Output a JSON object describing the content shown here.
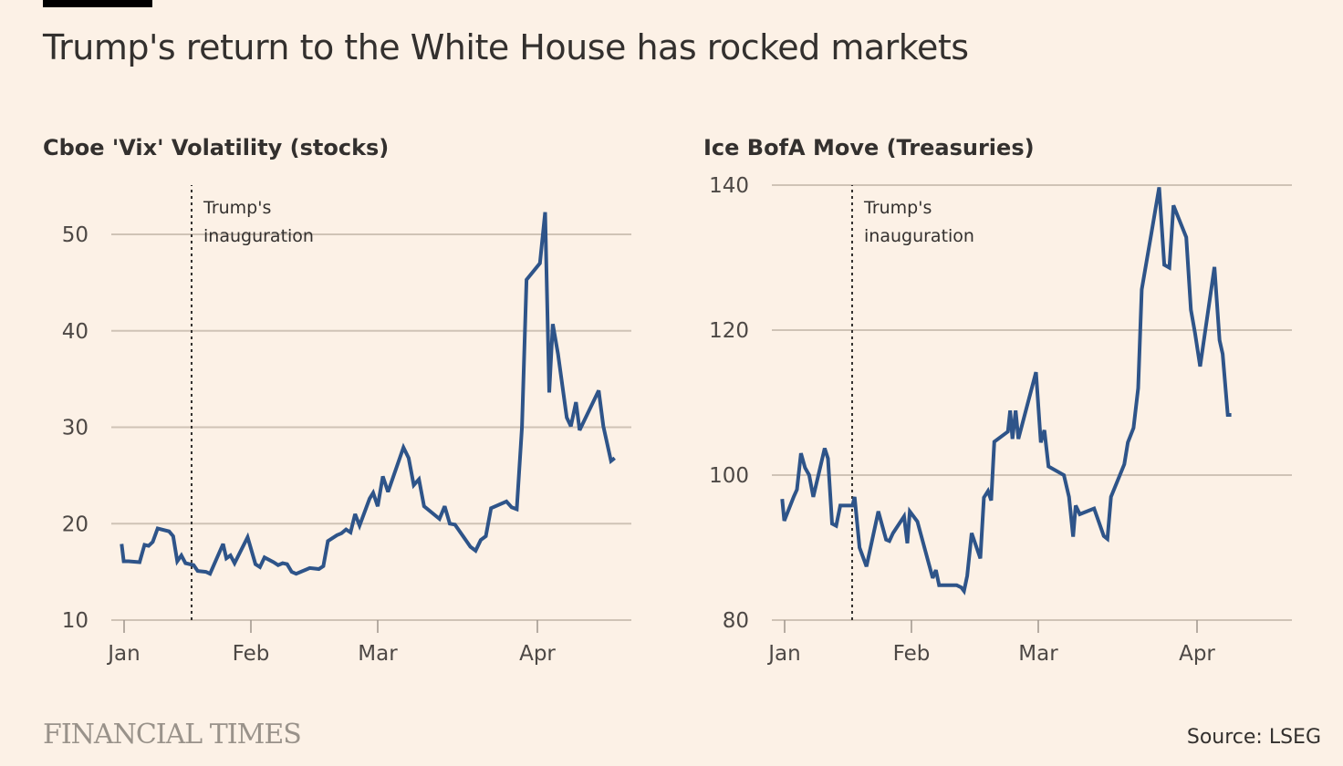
{
  "header": {
    "title": "Trump's return to the White House has rocked markets"
  },
  "footer": {
    "logo": "FINANCIAL TIMES",
    "source": "Source: LSEG"
  },
  "colors": {
    "background": "#fcf1e6",
    "line": "#2e5489",
    "grid": "#cfc3b6",
    "text": "#33302e"
  },
  "chart_data": [
    {
      "type": "line",
      "title": "Cboe 'Vix' Volatility (stocks)",
      "xlabel": "",
      "ylabel": "",
      "x_unit": "day-of-year 2025 (Jan 1 = 0)",
      "ylim": [
        10,
        55
      ],
      "yticks": [
        10,
        20,
        30,
        40,
        50
      ],
      "xticks": [
        {
          "label": "Jan",
          "day": 0
        },
        {
          "label": "Feb",
          "day": 31
        },
        {
          "label": "Mar",
          "day": 59
        },
        {
          "label": "Apr",
          "day": 90
        }
      ],
      "xlim": [
        -1,
        110
      ],
      "grid": true,
      "annotation": {
        "text": [
          "Trump's",
          "inauguration"
        ],
        "day": 16.5
      },
      "series": [
        {
          "name": "Vix",
          "points": [
            [
              -0.6,
              17.9
            ],
            [
              -0.1,
              16.1
            ],
            [
              1.1,
              16.1
            ],
            [
              3.8,
              16.0
            ],
            [
              5.0,
              17.8
            ],
            [
              6.0,
              17.7
            ],
            [
              7.0,
              18.1
            ],
            [
              8.2,
              19.5
            ],
            [
              11.0,
              19.2
            ],
            [
              12.0,
              18.7
            ],
            [
              13.0,
              16.1
            ],
            [
              14.0,
              16.7
            ],
            [
              15.0,
              15.9
            ],
            [
              17.0,
              15.7
            ],
            [
              18.0,
              15.1
            ],
            [
              20.0,
              15.0
            ],
            [
              21.0,
              14.8
            ],
            [
              24.2,
              17.9
            ],
            [
              25.0,
              16.4
            ],
            [
              26.0,
              16.7
            ],
            [
              27.0,
              15.9
            ],
            [
              30.2,
              18.6
            ],
            [
              32.0,
              15.8
            ],
            [
              33.0,
              15.5
            ],
            [
              34.0,
              16.5
            ],
            [
              36.0,
              16.0
            ],
            [
              37.0,
              15.7
            ],
            [
              38.0,
              15.9
            ],
            [
              39.0,
              15.8
            ],
            [
              40.0,
              15.0
            ],
            [
              41.0,
              14.8
            ],
            [
              43.0,
              15.2
            ],
            [
              44.0,
              15.4
            ],
            [
              46.0,
              15.3
            ],
            [
              47.0,
              15.6
            ],
            [
              48.0,
              18.2
            ],
            [
              50.0,
              18.8
            ],
            [
              51.0,
              19.0
            ],
            [
              52.0,
              19.4
            ],
            [
              53.0,
              19.1
            ],
            [
              54.0,
              21.0
            ],
            [
              55.0,
              19.8
            ],
            [
              57.2,
              22.6
            ],
            [
              58.0,
              23.2
            ],
            [
              59.0,
              21.8
            ],
            [
              60.0,
              24.9
            ],
            [
              61.0,
              23.3
            ],
            [
              64.0,
              27.9
            ],
            [
              65.0,
              26.8
            ],
            [
              66.0,
              24.0
            ],
            [
              67.0,
              24.6
            ],
            [
              68.0,
              21.8
            ],
            [
              71.0,
              20.5
            ],
            [
              72.0,
              21.8
            ],
            [
              73.0,
              20.0
            ],
            [
              74.0,
              19.9
            ],
            [
              77.0,
              17.6
            ],
            [
              78.0,
              17.2
            ],
            [
              79.0,
              18.3
            ],
            [
              80.0,
              18.7
            ],
            [
              81.0,
              21.6
            ],
            [
              84.0,
              22.3
            ],
            [
              85.0,
              21.7
            ],
            [
              86.0,
              21.5
            ],
            [
              87.0,
              30.0
            ],
            [
              87.9,
              45.3
            ],
            [
              90.5,
              47.0
            ],
            [
              91.5,
              52.3
            ],
            [
              92.3,
              33.6
            ],
            [
              93.0,
              40.7
            ],
            [
              94.0,
              37.6
            ],
            [
              95.7,
              31.0
            ],
            [
              96.5,
              30.1
            ],
            [
              97.5,
              32.6
            ],
            [
              98.2,
              29.7
            ],
            [
              101.9,
              33.8
            ],
            [
              102.8,
              30.1
            ],
            [
              104.3,
              26.5
            ],
            [
              105.0,
              26.8
            ]
          ]
        }
      ]
    },
    {
      "type": "line",
      "title": "Ice BofA Move (Treasuries)",
      "xlabel": "",
      "ylabel": "",
      "x_unit": "day-of-year 2025 (Jan 1 = 0)",
      "ylim": [
        80,
        140
      ],
      "yticks": [
        80,
        100,
        120,
        140
      ],
      "xticks": [
        {
          "label": "Jan",
          "day": 0
        },
        {
          "label": "Feb",
          "day": 31
        },
        {
          "label": "Mar",
          "day": 59
        },
        {
          "label": "Apr",
          "day": 90
        }
      ],
      "xlim": [
        -1,
        110
      ],
      "grid": true,
      "annotation": {
        "text": [
          "Trump's",
          "inauguration"
        ],
        "day": 16.5
      },
      "series": [
        {
          "name": "Move",
          "points": [
            [
              -0.6,
              96.7
            ],
            [
              -0.1,
              93.7
            ],
            [
              2.2,
              97.0
            ],
            [
              3.0,
              98.0
            ],
            [
              4.0,
              103.0
            ],
            [
              5.0,
              101.0
            ],
            [
              6.0,
              100.0
            ],
            [
              7.0,
              97.0
            ],
            [
              9.8,
              103.7
            ],
            [
              10.6,
              102.3
            ],
            [
              11.6,
              93.3
            ],
            [
              12.6,
              93.0
            ],
            [
              13.6,
              95.8
            ],
            [
              16.6,
              95.8
            ],
            [
              17.1,
              97.0
            ],
            [
              18.3,
              90.0
            ],
            [
              20.0,
              87.4
            ],
            [
              22.9,
              95.0
            ],
            [
              24.8,
              91.1
            ],
            [
              25.6,
              90.9
            ],
            [
              26.5,
              92.0
            ],
            [
              29.2,
              94.3
            ],
            [
              30.0,
              90.6
            ],
            [
              30.6,
              95.0
            ],
            [
              32.3,
              93.6
            ],
            [
              35.7,
              85.8
            ],
            [
              36.4,
              86.9
            ],
            [
              37.1,
              84.8
            ],
            [
              41.0,
              84.8
            ],
            [
              42.0,
              84.5
            ],
            [
              42.6,
              84.0
            ],
            [
              43.3,
              86.1
            ],
            [
              44.3,
              92.0
            ],
            [
              46.2,
              88.5
            ],
            [
              47.0,
              96.9
            ],
            [
              47.9,
              97.8
            ],
            [
              48.6,
              96.5
            ],
            [
              49.3,
              104.6
            ],
            [
              52.3,
              106.0
            ],
            [
              52.8,
              108.9
            ],
            [
              53.3,
              105.0
            ],
            [
              54.0,
              108.9
            ],
            [
              54.6,
              105.0
            ],
            [
              58.5,
              114.2
            ],
            [
              59.5,
              104.5
            ],
            [
              60.2,
              106.2
            ],
            [
              61.0,
              101.2
            ],
            [
              64.0,
              100.0
            ],
            [
              65.0,
              97.0
            ],
            [
              65.8,
              91.5
            ],
            [
              66.3,
              95.8
            ],
            [
              67.1,
              94.6
            ],
            [
              69.9,
              95.4
            ],
            [
              71.8,
              91.6
            ],
            [
              72.5,
              91.2
            ],
            [
              73.2,
              97.0
            ],
            [
              75.8,
              101.5
            ],
            [
              76.5,
              104.5
            ],
            [
              77.6,
              106.5
            ],
            [
              78.5,
              112.0
            ],
            [
              79.2,
              125.6
            ],
            [
              81.0,
              133.0
            ],
            [
              82.6,
              139.7
            ],
            [
              83.6,
              129.0
            ],
            [
              84.6,
              128.6
            ],
            [
              85.4,
              137.2
            ],
            [
              87.9,
              132.8
            ],
            [
              88.8,
              122.8
            ],
            [
              89.6,
              119.6
            ],
            [
              90.6,
              115.0
            ],
            [
              93.4,
              128.7
            ],
            [
              94.4,
              118.6
            ],
            [
              95.0,
              116.7
            ],
            [
              96.0,
              108.3
            ],
            [
              96.7,
              108.3
            ]
          ]
        }
      ]
    }
  ]
}
